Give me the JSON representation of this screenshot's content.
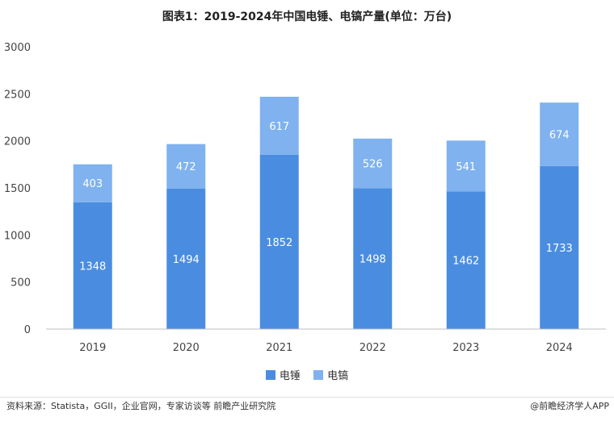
{
  "title": "图表1：2019-2024年中国电锤、电镐产量(单位：万台)",
  "source_text": "资料来源：Statista，GGII，企业官网，专家访谈等 前瞻产业研究院",
  "brand_text": "@前瞻经济学人APP",
  "chart_data": {
    "type": "bar",
    "stacked": true,
    "categories": [
      "2019",
      "2020",
      "2021",
      "2022",
      "2023",
      "2024"
    ],
    "series": [
      {
        "name": "电锤",
        "values": [
          1348,
          1494,
          1852,
          1498,
          1462,
          1733
        ],
        "color": "#4a8de0"
      },
      {
        "name": "电镐",
        "values": [
          403,
          472,
          617,
          526,
          541,
          674
        ],
        "color": "#7fb2ee"
      }
    ],
    "ylim": [
      0,
      3000
    ],
    "yticks": [
      0,
      500,
      1000,
      1500,
      2000,
      2500,
      3000
    ],
    "legend": "bottom",
    "grid": false
  }
}
